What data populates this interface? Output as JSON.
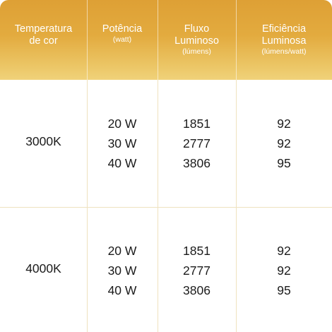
{
  "headers": [
    {
      "main": "Temperatura\nde cor",
      "sub": ""
    },
    {
      "main": "Potência",
      "sub": "(watt)"
    },
    {
      "main": "Fluxo\nLuminoso",
      "sub": "(lúmens)"
    },
    {
      "main": "Eficiência\nLuminosa",
      "sub": "(lúmens/watt)"
    }
  ],
  "rows": [
    {
      "temperature": "3000K",
      "power": [
        "20 W",
        "30 W",
        "40 W"
      ],
      "flux": [
        "1851",
        "2777",
        "3806"
      ],
      "efficiency": [
        "92",
        "92",
        "95"
      ]
    },
    {
      "temperature": "4000K",
      "power": [
        "20 W",
        "30 W",
        "40 W"
      ],
      "flux": [
        "1851",
        "2777",
        "3806"
      ],
      "efficiency": [
        "92",
        "92",
        "95"
      ]
    }
  ],
  "colors": {
    "header_top": "#dea035",
    "header_bottom": "#f0d27a",
    "grid_line": "#efe2bf",
    "text": "#1b1b1b"
  }
}
